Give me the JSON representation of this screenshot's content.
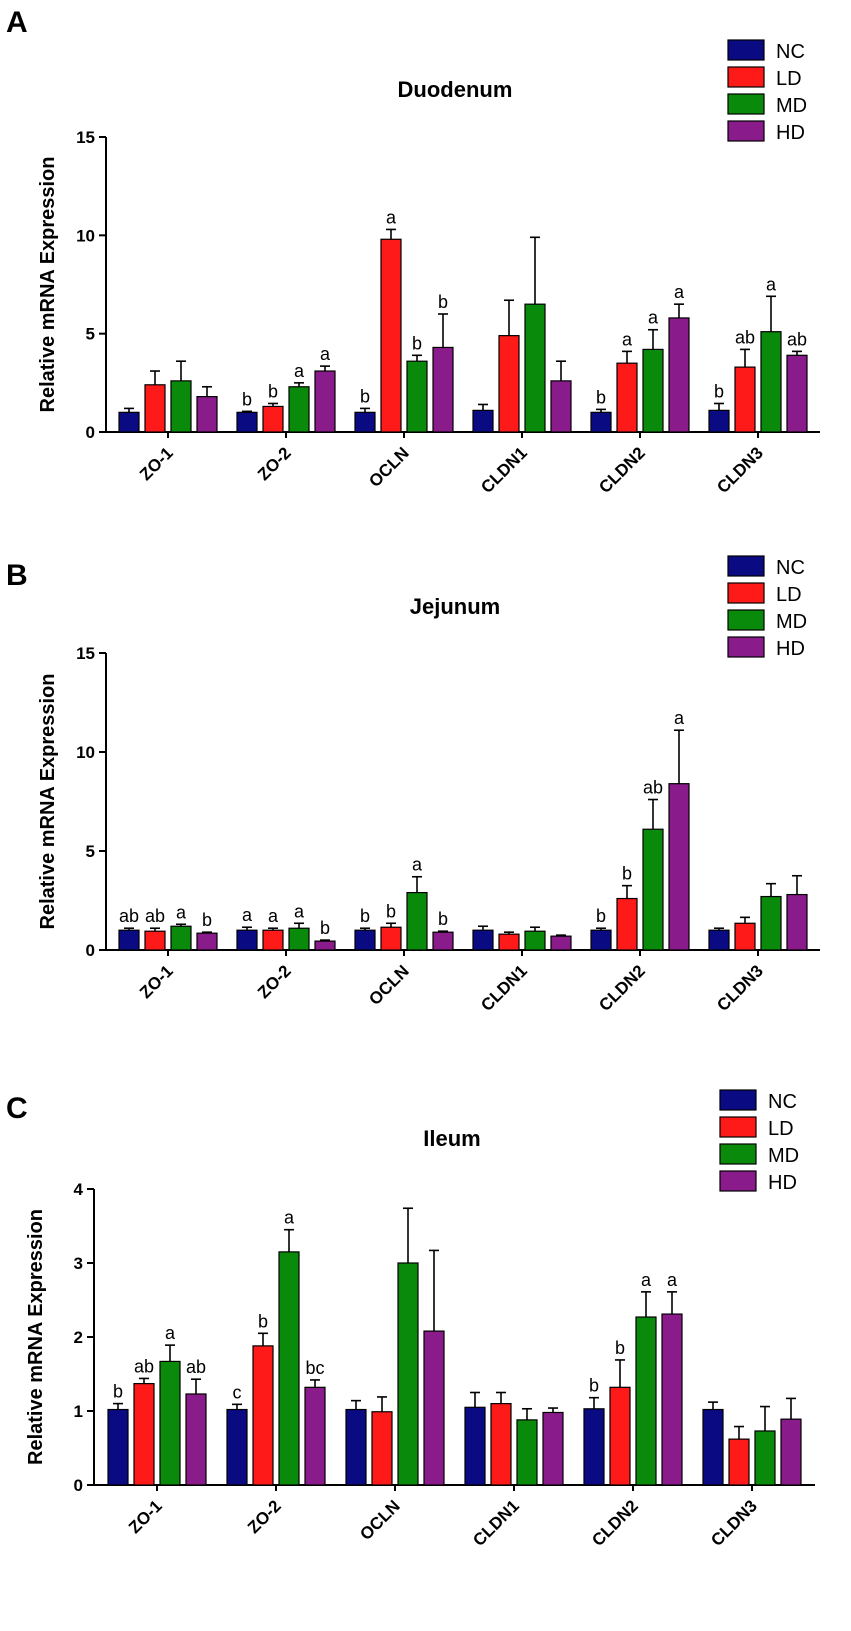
{
  "colors": {
    "NC": "#0a0a82",
    "LD": "#ff1a1a",
    "MD": "#0a8a0a",
    "HD": "#8a1b8a"
  },
  "chart_data": [
    {
      "type": "bar",
      "panel": "A",
      "title": "Duodenum",
      "ylabel": "Relative mRNA Expression",
      "xlabel": "",
      "ylim": [
        0,
        15
      ],
      "yticks": [
        0,
        5,
        10,
        15
      ],
      "legend": [
        "NC",
        "LD",
        "MD",
        "HD"
      ],
      "categories": [
        "ZO-1",
        "ZO-2",
        "OCLN",
        "CLDN1",
        "CLDN2",
        "CLDN3"
      ],
      "series": [
        {
          "name": "NC",
          "values": [
            1.0,
            1.0,
            1.0,
            1.1,
            1.0,
            1.1
          ],
          "errors": [
            0.2,
            0.05,
            0.2,
            0.3,
            0.15,
            0.35
          ],
          "labels": [
            "",
            "b",
            "b",
            "",
            "b",
            "b"
          ]
        },
        {
          "name": "LD",
          "values": [
            2.4,
            1.3,
            9.8,
            4.9,
            3.5,
            3.3
          ],
          "errors": [
            0.7,
            0.15,
            0.5,
            1.8,
            0.6,
            0.9
          ],
          "labels": [
            "",
            "b",
            "a",
            "",
            "a",
            "ab"
          ]
        },
        {
          "name": "MD",
          "values": [
            2.6,
            2.3,
            3.6,
            6.5,
            4.2,
            5.1
          ],
          "errors": [
            1.0,
            0.2,
            0.3,
            3.4,
            1.0,
            1.8
          ],
          "labels": [
            "",
            "a",
            "b",
            "",
            "a",
            "a"
          ]
        },
        {
          "name": "HD",
          "values": [
            1.8,
            3.1,
            4.3,
            2.6,
            5.8,
            3.9
          ],
          "errors": [
            0.5,
            0.25,
            1.7,
            1.0,
            0.7,
            0.2
          ],
          "labels": [
            "",
            "a",
            "b",
            "",
            "a",
            "ab"
          ]
        }
      ]
    },
    {
      "type": "bar",
      "panel": "B",
      "title": "Jejunum",
      "ylabel": "Relative mRNA Expression",
      "xlabel": "",
      "ylim": [
        0,
        15
      ],
      "yticks": [
        0,
        5,
        10,
        15
      ],
      "legend": [
        "NC",
        "LD",
        "MD",
        "HD"
      ],
      "categories": [
        "ZO-1",
        "ZO-2",
        "OCLN",
        "CLDN1",
        "CLDN2",
        "CLDN3"
      ],
      "series": [
        {
          "name": "NC",
          "values": [
            1.0,
            1.0,
            1.0,
            1.0,
            1.0,
            1.0
          ],
          "errors": [
            0.1,
            0.15,
            0.1,
            0.2,
            0.1,
            0.1
          ],
          "labels": [
            "ab",
            "a",
            "b",
            "",
            "b",
            ""
          ]
        },
        {
          "name": "LD",
          "values": [
            0.95,
            1.0,
            1.15,
            0.8,
            2.6,
            1.35
          ],
          "errors": [
            0.15,
            0.1,
            0.2,
            0.1,
            0.65,
            0.3
          ],
          "labels": [
            "ab",
            "a",
            "b",
            "",
            "b",
            ""
          ]
        },
        {
          "name": "MD",
          "values": [
            1.2,
            1.1,
            2.9,
            0.95,
            6.1,
            2.7
          ],
          "errors": [
            0.1,
            0.25,
            0.8,
            0.2,
            1.5,
            0.65
          ],
          "labels": [
            "a",
            "a",
            "a",
            "",
            "ab",
            ""
          ]
        },
        {
          "name": "HD",
          "values": [
            0.85,
            0.45,
            0.9,
            0.7,
            8.4,
            2.8
          ],
          "errors": [
            0.05,
            0.05,
            0.05,
            0.05,
            2.7,
            0.95
          ],
          "labels": [
            "b",
            "b",
            "b",
            "",
            "a",
            ""
          ]
        }
      ]
    },
    {
      "type": "bar",
      "panel": "C",
      "title": "Ileum",
      "ylabel": "Relative mRNA Expression",
      "xlabel": "",
      "ylim": [
        0,
        4
      ],
      "yticks": [
        0,
        1,
        2,
        3,
        4
      ],
      "legend": [
        "NC",
        "LD",
        "MD",
        "HD"
      ],
      "categories": [
        "ZO-1",
        "ZO-2",
        "OCLN",
        "CLDN1",
        "CLDN2",
        "CLDN3"
      ],
      "series": [
        {
          "name": "NC",
          "values": [
            1.02,
            1.02,
            1.02,
            1.05,
            1.03,
            1.02
          ],
          "errors": [
            0.08,
            0.07,
            0.12,
            0.2,
            0.15,
            0.1
          ],
          "labels": [
            "b",
            "c",
            "",
            "",
            "b",
            ""
          ]
        },
        {
          "name": "LD",
          "values": [
            1.37,
            1.88,
            0.99,
            1.1,
            1.32,
            0.62
          ],
          "errors": [
            0.07,
            0.17,
            0.2,
            0.15,
            0.37,
            0.17
          ],
          "labels": [
            "ab",
            "b",
            "",
            "",
            "b",
            ""
          ]
        },
        {
          "name": "MD",
          "values": [
            1.67,
            3.15,
            3.0,
            0.88,
            2.27,
            0.73
          ],
          "errors": [
            0.22,
            0.3,
            0.74,
            0.15,
            0.34,
            0.33
          ],
          "labels": [
            "a",
            "a",
            "",
            "",
            "a",
            ""
          ]
        },
        {
          "name": "HD",
          "values": [
            1.23,
            1.32,
            2.08,
            0.98,
            2.31,
            0.89
          ],
          "errors": [
            0.2,
            0.1,
            1.09,
            0.06,
            0.3,
            0.28
          ],
          "labels": [
            "ab",
            "bc",
            "",
            "",
            "a",
            ""
          ]
        }
      ]
    }
  ]
}
